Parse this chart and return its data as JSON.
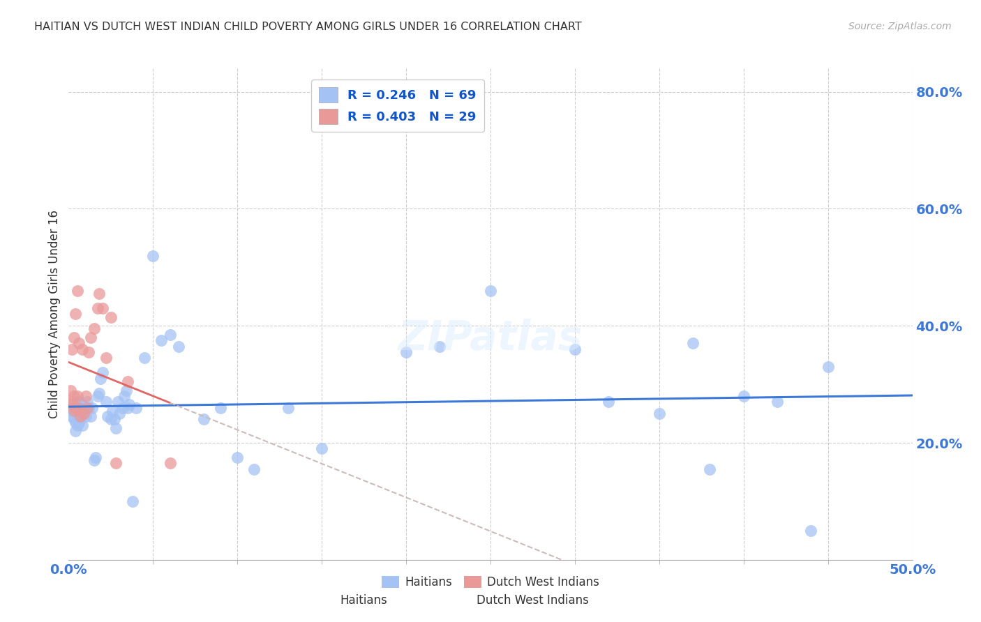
{
  "title": "HAITIAN VS DUTCH WEST INDIAN CHILD POVERTY AMONG GIRLS UNDER 16 CORRELATION CHART",
  "source": "Source: ZipAtlas.com",
  "ylabel": "Child Poverty Among Girls Under 16",
  "xlim": [
    0.0,
    0.5
  ],
  "ylim": [
    0.0,
    0.84
  ],
  "ytick_positions": [
    0.2,
    0.4,
    0.6,
    0.8
  ],
  "ytick_labels": [
    "20.0%",
    "40.0%",
    "60.0%",
    "80.0%"
  ],
  "blue_R": 0.246,
  "blue_N": 69,
  "pink_R": 0.403,
  "pink_N": 29,
  "blue_color": "#a4c2f4",
  "pink_color": "#ea9999",
  "blue_line_color": "#3c78d8",
  "pink_line_color": "#e06666",
  "pink_dash_color": "#ccbbbb",
  "background_color": "#ffffff",
  "grid_color": "#cccccc",
  "blue_x": [
    0.001,
    0.002,
    0.002,
    0.003,
    0.003,
    0.004,
    0.004,
    0.005,
    0.005,
    0.005,
    0.006,
    0.006,
    0.006,
    0.007,
    0.007,
    0.008,
    0.008,
    0.009,
    0.009,
    0.01,
    0.01,
    0.011,
    0.012,
    0.013,
    0.014,
    0.015,
    0.016,
    0.017,
    0.018,
    0.019,
    0.02,
    0.022,
    0.023,
    0.025,
    0.026,
    0.027,
    0.028,
    0.029,
    0.03,
    0.032,
    0.033,
    0.034,
    0.035,
    0.036,
    0.038,
    0.04,
    0.045,
    0.05,
    0.055,
    0.06,
    0.065,
    0.08,
    0.09,
    0.1,
    0.11,
    0.13,
    0.15,
    0.2,
    0.22,
    0.25,
    0.3,
    0.32,
    0.35,
    0.37,
    0.38,
    0.4,
    0.42,
    0.44,
    0.45
  ],
  "blue_y": [
    0.255,
    0.245,
    0.26,
    0.24,
    0.255,
    0.22,
    0.235,
    0.23,
    0.245,
    0.26,
    0.235,
    0.27,
    0.255,
    0.24,
    0.265,
    0.23,
    0.265,
    0.25,
    0.255,
    0.245,
    0.26,
    0.27,
    0.26,
    0.245,
    0.26,
    0.17,
    0.175,
    0.28,
    0.285,
    0.31,
    0.32,
    0.27,
    0.245,
    0.24,
    0.255,
    0.24,
    0.225,
    0.27,
    0.25,
    0.26,
    0.28,
    0.29,
    0.26,
    0.265,
    0.1,
    0.26,
    0.345,
    0.52,
    0.375,
    0.385,
    0.365,
    0.24,
    0.26,
    0.175,
    0.155,
    0.26,
    0.19,
    0.355,
    0.365,
    0.46,
    0.36,
    0.27,
    0.25,
    0.37,
    0.155,
    0.28,
    0.27,
    0.05,
    0.33
  ],
  "pink_x": [
    0.001,
    0.001,
    0.002,
    0.002,
    0.003,
    0.003,
    0.003,
    0.004,
    0.004,
    0.005,
    0.005,
    0.006,
    0.006,
    0.007,
    0.008,
    0.009,
    0.01,
    0.011,
    0.012,
    0.013,
    0.015,
    0.017,
    0.018,
    0.02,
    0.022,
    0.025,
    0.028,
    0.035,
    0.06
  ],
  "pink_y": [
    0.265,
    0.29,
    0.27,
    0.36,
    0.255,
    0.28,
    0.38,
    0.26,
    0.42,
    0.28,
    0.46,
    0.37,
    0.26,
    0.245,
    0.36,
    0.25,
    0.28,
    0.26,
    0.355,
    0.38,
    0.395,
    0.43,
    0.455,
    0.43,
    0.345,
    0.415,
    0.165,
    0.305,
    0.165
  ]
}
